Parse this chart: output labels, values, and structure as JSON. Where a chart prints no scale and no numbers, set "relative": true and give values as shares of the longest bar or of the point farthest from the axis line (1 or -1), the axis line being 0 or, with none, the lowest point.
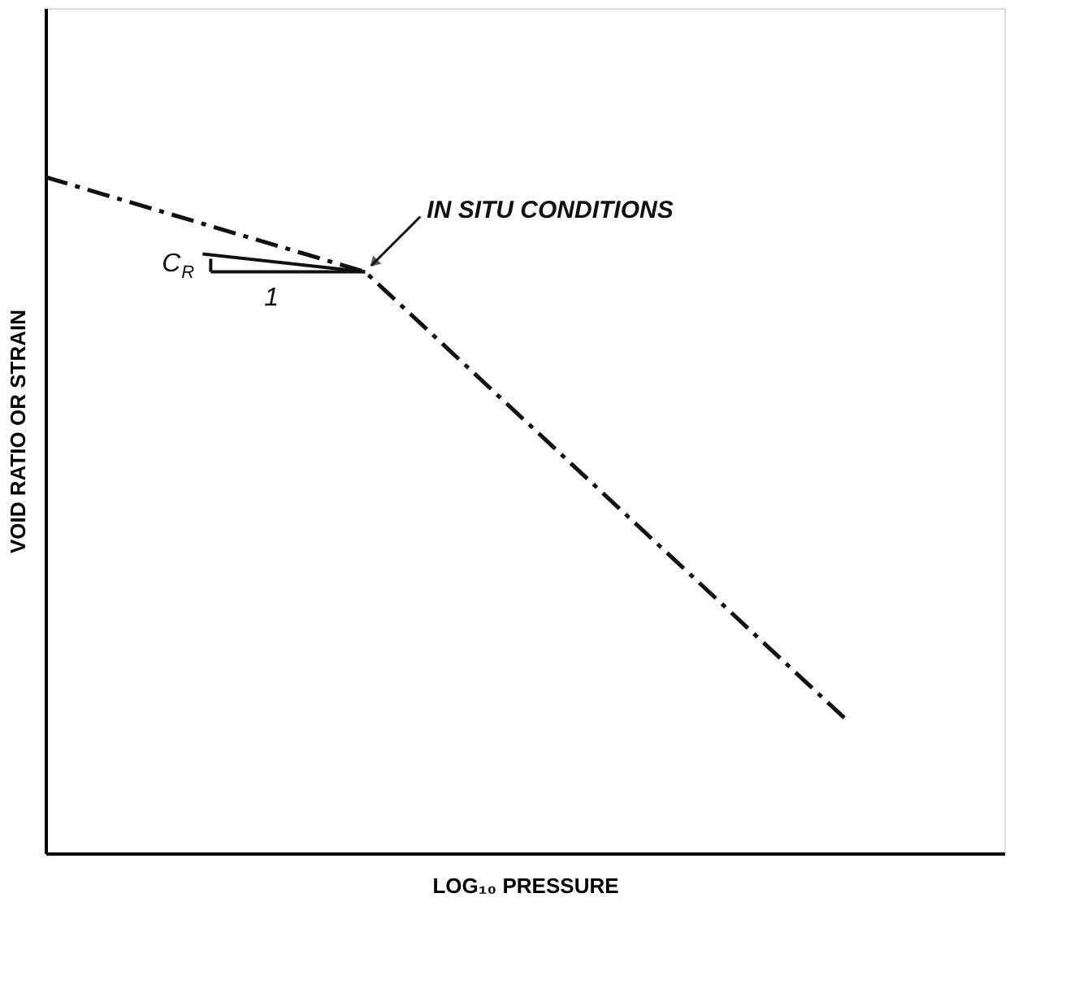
{
  "chart_data": {
    "type": "line",
    "relative": true,
    "xlabel": "LOG₁₀ PRESSURE",
    "ylabel": "VOID RATIO OR STRAIN",
    "categories": [
      null,
      null,
      null,
      null,
      null,
      null
    ],
    "line_style": "dashed",
    "marker": "none",
    "grid": false,
    "legend": false,
    "series": [
      {
        "color": "#111111",
        "values": [
          1,
          0.93,
          0.86,
          0.64,
          0.42,
          0.2
        ]
      }
    ],
    "annotations": [
      "IN SITU CONDITIONS",
      "C$_{R}$",
      "1"
    ]
  }
}
